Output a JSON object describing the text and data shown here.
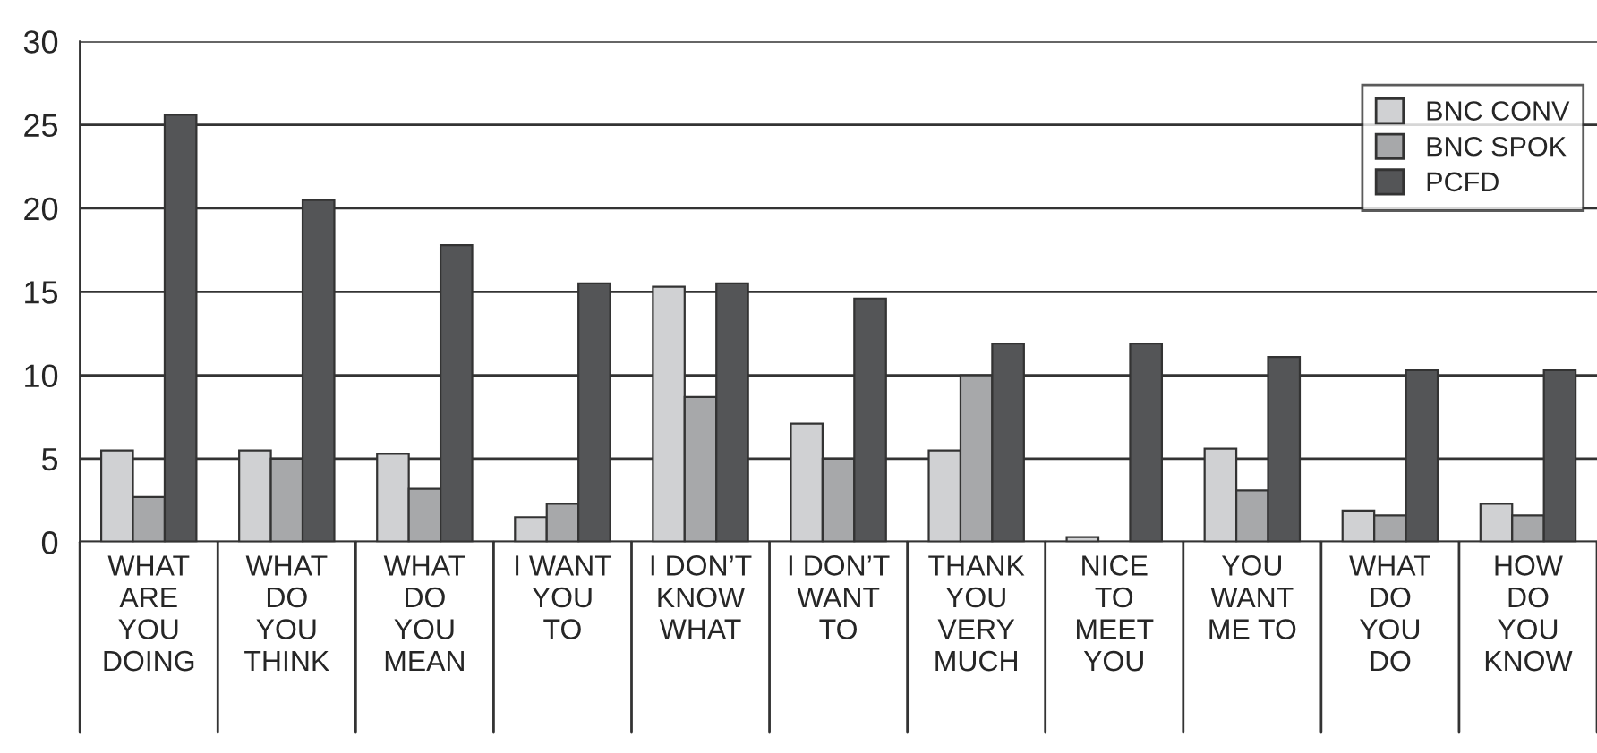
{
  "chart_data": {
    "type": "bar",
    "categories": [
      "WHAT\nARE\nYOU\nDOING",
      "WHAT\nDO\nYOU\nTHINK",
      "WHAT\nDO\nYOU\nMEAN",
      "I WANT\nYOU\nTO",
      "I DON’T\nKNOW\nWHAT",
      "I DON’T\nWANT\nTO",
      "THANK\nYOU\nVERY\nMUCH",
      "NICE\nTO\nMEET\nYOU",
      "YOU\nWANT\nME TO",
      "WHAT\nDO\nYOU\nDO",
      "HOW\nDO\nYOU\nKNOW"
    ],
    "series": [
      {
        "name": "BNC CONV",
        "color": "#d0d1d3",
        "values": [
          5.5,
          5.5,
          5.3,
          1.5,
          15.3,
          7.1,
          5.5,
          0.3,
          5.6,
          1.9,
          2.3
        ]
      },
      {
        "name": "BNC SPOK",
        "color": "#a7a8aa",
        "values": [
          2.7,
          5.0,
          3.2,
          2.3,
          8.7,
          5.0,
          10.0,
          null,
          3.1,
          1.6,
          1.6
        ]
      },
      {
        "name": "PCFD",
        "color": "#545557",
        "values": [
          25.6,
          20.5,
          17.8,
          15.5,
          15.5,
          14.6,
          11.9,
          11.9,
          11.1,
          10.3,
          10.3
        ]
      }
    ],
    "ylim": [
      0,
      30
    ],
    "yticks": [
      0,
      5,
      10,
      15,
      20,
      25,
      30
    ],
    "grid": "y",
    "legend": "top right"
  }
}
